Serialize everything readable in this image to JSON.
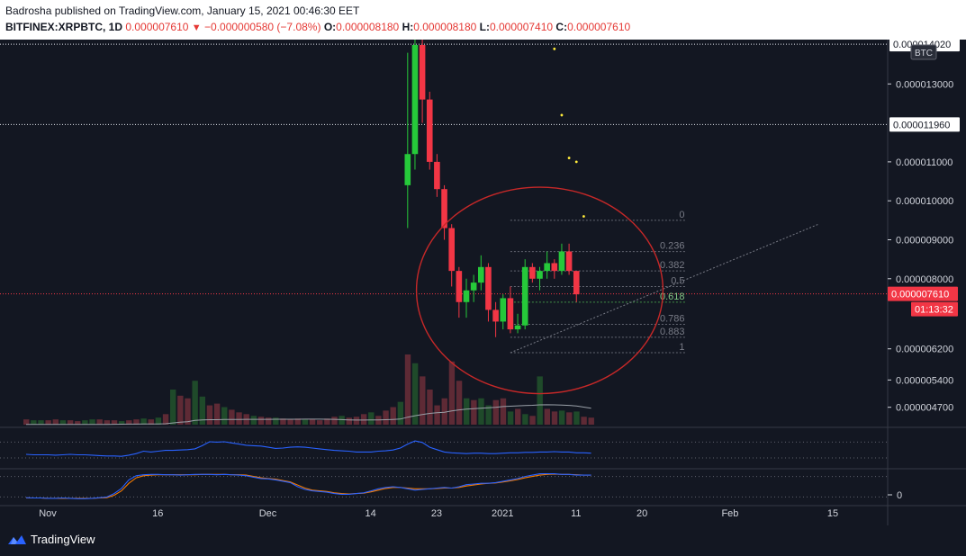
{
  "header": {
    "publisher_line": "Badrosha published on TradingView.com, January 15, 2021 00:46:30 EET",
    "symbol": "BITFINEX:XRPBTC, 1D",
    "last": "0.000007610",
    "change": "−0.000000580 (−7.08%)",
    "o_label": "O:",
    "o_value": "0.000008180",
    "h_label": "H:",
    "h_value": "0.000008180",
    "l_label": "L:",
    "l_value": "0.000007410",
    "c_label": "C:",
    "c_value": "0.000007610"
  },
  "footer": {
    "brand": "TradingView"
  },
  "colors": {
    "background": "#131722",
    "up": "#26c93a",
    "down": "#f23645",
    "volume_up": "#1f4a2a",
    "volume_down": "#5e2a35",
    "circle": "#c62828",
    "ma": "#9aa0a8",
    "rsi": "#2962ff",
    "stoch_k": "#2962ff",
    "stoch_d": "#f57c00"
  },
  "chart_data": {
    "type": "candlestick",
    "currency_badge": "BTC",
    "y_ticks": [
      "0.000013000",
      "0.000011000",
      "0.000010000",
      "0.000009000",
      "0.000008000",
      "0.000006200",
      "0.000005400",
      "0.000004700"
    ],
    "y_range": [
      4.3e-06,
      1.4e-05
    ],
    "price_tags": [
      {
        "label": "0.000014020",
        "value": 1.402e-05,
        "style": "white"
      },
      {
        "label": "0.000011960",
        "value": 1.196e-05,
        "style": "white"
      },
      {
        "label": "0.000007610",
        "value": 7.61e-06,
        "style": "red"
      },
      {
        "label": "01:13:32",
        "value": 7.22e-06,
        "style": "red"
      }
    ],
    "hlines": [
      1.402e-05,
      1.196e-05
    ],
    "last_price": 7.61e-06,
    "x_ticks": [
      {
        "label": "Nov",
        "index": 0
      },
      {
        "label": "16",
        "index": 15
      },
      {
        "label": "Dec",
        "index": 30
      },
      {
        "label": "14",
        "index": 44
      },
      {
        "label": "23",
        "index": 53
      },
      {
        "label": "2021",
        "index": 62
      },
      {
        "label": "11",
        "index": 72
      },
      {
        "label": "20",
        "index": 81
      },
      {
        "label": "Feb",
        "index": 93
      },
      {
        "label": "15",
        "index": 107
      }
    ],
    "candles": [
      [
        1.04e-05,
        1.38e-05,
        9.3e-06,
        1.12e-05
      ],
      [
        1.12e-05,
        1.43e-05,
        1.08e-05,
        1.4e-05
      ],
      [
        1.4e-05,
        1.45e-05,
        1.2e-05,
        1.26e-05
      ],
      [
        1.26e-05,
        1.28e-05,
        1.08e-05,
        1.1e-05
      ],
      [
        1.1e-05,
        1.12e-05,
        1.01e-05,
        1.03e-05
      ],
      [
        1.03e-05,
        1.04e-05,
        9e-06,
        9.3e-06
      ],
      [
        9.3e-06,
        9.4e-06,
        7.8e-06,
        8.2e-06
      ],
      [
        8.2e-06,
        8.3e-06,
        7e-06,
        7.4e-06
      ],
      [
        7.4e-06,
        8e-06,
        7e-06,
        7.7e-06
      ],
      [
        7.7e-06,
        8.1e-06,
        7.4e-06,
        7.9e-06
      ],
      [
        7.9e-06,
        8.6e-06,
        7.7e-06,
        8.3e-06
      ],
      [
        8.3e-06,
        8.4e-06,
        6.9e-06,
        7.2e-06
      ],
      [
        7.2e-06,
        7.4e-06,
        6.5e-06,
        6.9e-06
      ],
      [
        6.9e-06,
        7.6e-06,
        6.7e-06,
        7.5e-06
      ],
      [
        7.5e-06,
        7.8e-06,
        6.6e-06,
        6.7e-06
      ],
      [
        6.7e-06,
        7.1e-06,
        6.6e-06,
        6.8e-06
      ],
      [
        6.8e-06,
        8.5e-06,
        6.7e-06,
        8.3e-06
      ],
      [
        8.3e-06,
        8.4e-06,
        7.9e-06,
        8e-06
      ],
      [
        8e-06,
        8.3e-06,
        7.7e-06,
        8.2e-06
      ],
      [
        8.2e-06,
        8.7e-06,
        8e-06,
        8.4e-06
      ],
      [
        8.4e-06,
        8.5e-06,
        8e-06,
        8.2e-06
      ],
      [
        8.2e-06,
        8.9e-06,
        8.1e-06,
        8.7e-06
      ],
      [
        8.7e-06,
        8.9e-06,
        8.1e-06,
        8.2e-06
      ],
      [
        8.2e-06,
        8.2e-06,
        7.4e-06,
        7.6e-06
      ]
    ],
    "candles_start_index": 52,
    "volume": [
      [
        6,
        0
      ],
      [
        5,
        1
      ],
      [
        5,
        1
      ],
      [
        5,
        0
      ],
      [
        6,
        0
      ],
      [
        5,
        1
      ],
      [
        5,
        0
      ],
      [
        4,
        0
      ],
      [
        5,
        1
      ],
      [
        6,
        1
      ],
      [
        6,
        0
      ],
      [
        5,
        0
      ],
      [
        5,
        0
      ],
      [
        4,
        1
      ],
      [
        5,
        0
      ],
      [
        6,
        0
      ],
      [
        7,
        1
      ],
      [
        6,
        0
      ],
      [
        8,
        1
      ],
      [
        12,
        0
      ],
      [
        40,
        1
      ],
      [
        33,
        0
      ],
      [
        30,
        0
      ],
      [
        50,
        1
      ],
      [
        32,
        1
      ],
      [
        22,
        0
      ],
      [
        24,
        0
      ],
      [
        20,
        1
      ],
      [
        17,
        0
      ],
      [
        14,
        0
      ],
      [
        12,
        0
      ],
      [
        10,
        1
      ],
      [
        9,
        0
      ],
      [
        8,
        0
      ],
      [
        8,
        1
      ],
      [
        7,
        0
      ],
      [
        6,
        0
      ],
      [
        7,
        0
      ],
      [
        6,
        1
      ],
      [
        6,
        0
      ],
      [
        5,
        0
      ],
      [
        7,
        0
      ],
      [
        9,
        0
      ],
      [
        10,
        1
      ],
      [
        8,
        0
      ],
      [
        9,
        0
      ],
      [
        12,
        0
      ],
      [
        14,
        1
      ],
      [
        10,
        0
      ],
      [
        16,
        0
      ],
      [
        20,
        0
      ],
      [
        26,
        1
      ],
      [
        80,
        0
      ],
      [
        70,
        1
      ],
      [
        55,
        0
      ],
      [
        40,
        0
      ],
      [
        22,
        0
      ],
      [
        30,
        0
      ],
      [
        72,
        0
      ],
      [
        50,
        0
      ],
      [
        30,
        1
      ],
      [
        28,
        0
      ],
      [
        30,
        1
      ],
      [
        22,
        1
      ],
      [
        28,
        0
      ],
      [
        30,
        0
      ],
      [
        15,
        1
      ],
      [
        18,
        0
      ],
      [
        12,
        1
      ],
      [
        10,
        0
      ],
      [
        55,
        1
      ],
      [
        18,
        0
      ],
      [
        15,
        0
      ],
      [
        16,
        1
      ],
      [
        14,
        0
      ],
      [
        15,
        1
      ],
      [
        9,
        0
      ],
      [
        8,
        0
      ]
    ],
    "ma": [
      0.2,
      0.2,
      0.2,
      0.2,
      0.2,
      0.2,
      0.2,
      0.2,
      0.3,
      0.3,
      0.3,
      0.3,
      0.4,
      0.5,
      0.6,
      0.6,
      0.7,
      0.7,
      0.8,
      1.0,
      2.0,
      2.8,
      3.4,
      4.8,
      5.4,
      5.6,
      5.6,
      5.8,
      5.8,
      5.9,
      6.0,
      6.0,
      6.1,
      6.1,
      6.2,
      6.2,
      6.2,
      6.2,
      6.3,
      6.3,
      6.3,
      6.2,
      6.0,
      5.7,
      5.4,
      5.2,
      5.2,
      5.3,
      5.4,
      5.6,
      5.9,
      6.4,
      8.5,
      10.2,
      11.6,
      12.8,
      13.5,
      14.1,
      15.6,
      16.8,
      17.6,
      18.2,
      18.7,
      19.2,
      19.8,
      20.6,
      21.0,
      21.4,
      21.8,
      22.1,
      22.6,
      22.7,
      22.6,
      22.4,
      22.0,
      21.2,
      20.0,
      18.8
    ],
    "rsi": [
      34,
      33,
      33,
      33,
      32,
      33,
      34,
      33,
      33,
      32,
      31,
      30,
      30,
      29,
      32,
      36,
      42,
      40,
      42,
      44,
      44,
      45,
      46,
      48,
      56,
      66,
      65,
      66,
      63,
      60,
      57,
      56,
      55,
      52,
      49,
      50,
      52,
      53,
      52,
      50,
      48,
      46,
      44,
      43,
      42,
      40,
      40,
      40,
      42,
      43,
      45,
      50,
      60,
      68,
      64,
      52,
      46,
      40,
      38,
      37,
      36,
      37,
      37,
      36,
      36,
      37,
      38,
      38,
      39,
      39,
      40,
      40,
      41,
      40,
      40,
      38,
      38,
      37
    ],
    "stoch_k": [
      18,
      17,
      17,
      16,
      16,
      17,
      16,
      15,
      15,
      16,
      18,
      20,
      30,
      45,
      70,
      82,
      85,
      86,
      86,
      85,
      85,
      84,
      85,
      86,
      86,
      86,
      85,
      86,
      85,
      84,
      82,
      78,
      74,
      73,
      70,
      66,
      62,
      50,
      42,
      38,
      36,
      34,
      30,
      28,
      28,
      30,
      32,
      38,
      44,
      48,
      50,
      48,
      44,
      40,
      42,
      44,
      46,
      48,
      46,
      50,
      56,
      58,
      60,
      60,
      62,
      66,
      70,
      74,
      80,
      84,
      88,
      88,
      88,
      86,
      86,
      84,
      84,
      84
    ],
    "stoch_d": [
      17,
      17,
      17,
      16,
      16,
      16,
      16,
      16,
      16,
      16,
      17,
      18,
      25,
      38,
      60,
      76,
      82,
      84,
      85,
      85,
      85,
      85,
      85,
      85,
      86,
      86,
      86,
      86,
      85,
      85,
      84,
      80,
      76,
      74,
      72,
      68,
      64,
      55,
      46,
      40,
      38,
      36,
      32,
      30,
      29,
      30,
      31,
      35,
      40,
      45,
      48,
      48,
      46,
      44,
      44,
      44,
      45,
      46,
      46,
      48,
      52,
      55,
      58,
      60,
      61,
      64,
      67,
      71,
      76,
      80,
      84,
      86,
      87,
      86,
      86,
      85,
      84,
      84
    ],
    "stoch_axis_label": "0",
    "fib": {
      "levels": [
        {
          "label": "0",
          "ratio": 0
        },
        {
          "label": "0.236",
          "ratio": 0.236
        },
        {
          "label": "0.382",
          "ratio": 0.382
        },
        {
          "label": "0.5",
          "ratio": 0.5
        },
        {
          "label": "0.618",
          "ratio": 0.618
        },
        {
          "label": "0.786",
          "ratio": 0.786
        },
        {
          "label": "0.883",
          "ratio": 0.883
        },
        {
          "label": "1",
          "ratio": 1
        }
      ],
      "high": 9.5e-06,
      "low": 6.1e-06,
      "from_index": 66,
      "to_index": 90
    },
    "trendline": {
      "from": [
        66,
        6.1e-06
      ],
      "to": [
        108,
        9.4e-06
      ]
    },
    "circle": {
      "center_index": 70,
      "center_value": 7.7e-06,
      "radius_x_bars": 16.8,
      "radius_y_value": 2.65e-06
    },
    "forecast_dots": [
      {
        "index": 72,
        "value": 1.39e-05
      },
      {
        "index": 73,
        "value": 1.22e-05
      },
      {
        "index": 74,
        "value": 1.11e-05
      },
      {
        "index": 75,
        "value": 1.1e-05
      },
      {
        "index": 76,
        "value": 9.6e-06
      }
    ]
  }
}
